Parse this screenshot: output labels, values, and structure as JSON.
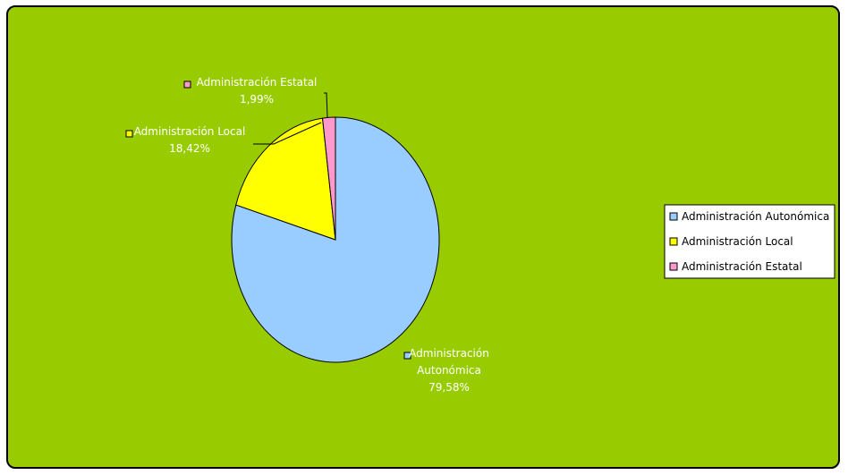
{
  "chart_data": {
    "type": "pie",
    "title": "",
    "background": "#99CC00",
    "slices": [
      {
        "label": "Administración Autonómica",
        "value": 79.58,
        "display": "79,58%",
        "color": "#99CCFF",
        "data_label_lines": [
          "Administración",
          "Autonómica",
          "79,58%"
        ]
      },
      {
        "label": "Administración Local",
        "value": 18.42,
        "display": "18,42%",
        "color": "#FFFF00",
        "data_label_lines": [
          "Administración Local",
          "18,42%"
        ]
      },
      {
        "label": "Administración Estatal",
        "value": 1.99,
        "display": "1,99%",
        "color": "#FF99CC",
        "data_label_lines": [
          "Administración Estatal",
          "1,99%"
        ]
      }
    ],
    "legend": {
      "position": "right",
      "items": [
        "Administración Autonómica",
        "Administración Local",
        "Administración Estatal"
      ]
    }
  }
}
